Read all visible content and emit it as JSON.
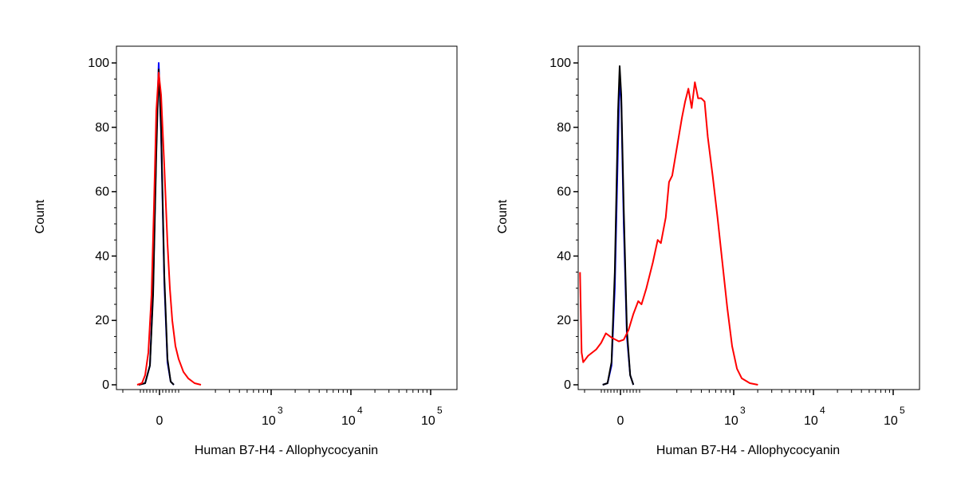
{
  "chart_data": [
    {
      "type": "line",
      "xlabel": "Human B7-H4 - Allophycocyanin",
      "ylabel": "Count",
      "ylim": [
        0,
        100
      ],
      "x_scale": "biexponential",
      "y_ticks": [
        "0",
        "20",
        "40",
        "60",
        "80",
        "100"
      ],
      "x_ticks": [
        {
          "base": "0",
          "exp": ""
        },
        {
          "base": "10",
          "exp": "3"
        },
        {
          "base": "10",
          "exp": "4"
        },
        {
          "base": "10",
          "exp": "5"
        }
      ],
      "grid": false,
      "series": [
        {
          "color": "#0000ff",
          "points": [
            [
              -1.3,
              0
            ],
            [
              -0.9,
              0.5
            ],
            [
              -0.6,
              6
            ],
            [
              -0.4,
              30
            ],
            [
              -0.2,
              75
            ],
            [
              -0.05,
              100
            ],
            [
              0.1,
              78
            ],
            [
              0.3,
              32
            ],
            [
              0.5,
              7
            ],
            [
              0.7,
              1
            ],
            [
              0.9,
              0
            ]
          ]
        },
        {
          "color": "#000000",
          "points": [
            [
              -1.3,
              0
            ],
            [
              -0.9,
              0.5
            ],
            [
              -0.6,
              6
            ],
            [
              -0.4,
              28
            ],
            [
              -0.2,
              72
            ],
            [
              -0.05,
              98
            ],
            [
              0.1,
              80
            ],
            [
              0.3,
              34
            ],
            [
              0.5,
              8
            ],
            [
              0.7,
              1
            ],
            [
              0.9,
              0
            ]
          ]
        },
        {
          "color": "#ff0000",
          "points": [
            [
              -1.4,
              0
            ],
            [
              -1.1,
              0.5
            ],
            [
              -0.9,
              3
            ],
            [
              -0.7,
              10
            ],
            [
              -0.5,
              28
            ],
            [
              -0.35,
              55
            ],
            [
              -0.2,
              85
            ],
            [
              -0.05,
              97
            ],
            [
              0.1,
              90
            ],
            [
              0.3,
              68
            ],
            [
              0.5,
              44
            ],
            [
              0.65,
              30
            ],
            [
              0.8,
              20
            ],
            [
              1.0,
              12
            ],
            [
              1.2,
              8
            ],
            [
              1.5,
              4
            ],
            [
              1.8,
              2
            ],
            [
              2.2,
              0.5
            ],
            [
              2.6,
              0
            ]
          ]
        }
      ]
    },
    {
      "type": "line",
      "xlabel": "Human B7-H4 - Allophycocyanin",
      "ylabel": "Count",
      "ylim": [
        0,
        100
      ],
      "x_scale": "biexponential",
      "y_ticks": [
        "0",
        "20",
        "40",
        "60",
        "80",
        "100"
      ],
      "x_ticks": [
        {
          "base": "0",
          "exp": ""
        },
        {
          "base": "10",
          "exp": "3"
        },
        {
          "base": "10",
          "exp": "4"
        },
        {
          "base": "10",
          "exp": "5"
        }
      ],
      "grid": false,
      "series": [
        {
          "color": "#0000ff",
          "points": [
            [
              -1.1,
              0
            ],
            [
              -0.8,
              0.5
            ],
            [
              -0.55,
              6
            ],
            [
              -0.35,
              30
            ],
            [
              -0.15,
              75
            ],
            [
              -0.05,
              96
            ],
            [
              0.05,
              88
            ],
            [
              0.2,
              50
            ],
            [
              0.4,
              15
            ],
            [
              0.6,
              3
            ],
            [
              0.8,
              0
            ]
          ]
        },
        {
          "color": "#000000",
          "points": [
            [
              -1.1,
              0
            ],
            [
              -0.8,
              0.5
            ],
            [
              -0.55,
              7
            ],
            [
              -0.35,
              35
            ],
            [
              -0.15,
              85
            ],
            [
              -0.05,
              99
            ],
            [
              0.05,
              90
            ],
            [
              0.2,
              55
            ],
            [
              0.4,
              17
            ],
            [
              0.6,
              3
            ],
            [
              0.8,
              0
            ]
          ]
        },
        {
          "color": "#ff0000",
          "points": [
            [
              -2.5,
              35
            ],
            [
              -2.4,
              10
            ],
            [
              -2.3,
              7
            ],
            [
              -2.0,
              9
            ],
            [
              -1.5,
              11
            ],
            [
              -1.2,
              13
            ],
            [
              -0.9,
              16
            ],
            [
              -0.5,
              14.5
            ],
            [
              -0.1,
              13.5
            ],
            [
              0.2,
              14
            ],
            [
              0.5,
              17
            ],
            [
              0.8,
              22
            ],
            [
              1.1,
              26
            ],
            [
              1.3,
              25
            ],
            [
              1.6,
              30
            ],
            [
              2.0,
              38
            ],
            [
              2.3,
              45
            ],
            [
              2.5,
              44
            ],
            [
              2.8,
              52
            ],
            [
              3.0,
              63
            ],
            [
              3.2,
              65
            ],
            [
              3.5,
              74
            ],
            [
              3.8,
              83
            ],
            [
              4.0,
              88
            ],
            [
              4.2,
              92
            ],
            [
              4.4,
              86
            ],
            [
              4.6,
              94
            ],
            [
              4.8,
              89
            ],
            [
              5.0,
              89
            ],
            [
              5.2,
              88
            ],
            [
              5.4,
              77
            ],
            [
              5.7,
              65
            ],
            [
              6.0,
              52
            ],
            [
              6.3,
              38
            ],
            [
              6.6,
              24
            ],
            [
              6.9,
              12
            ],
            [
              7.2,
              5
            ],
            [
              7.5,
              2
            ],
            [
              8.0,
              0.5
            ],
            [
              8.5,
              0
            ]
          ]
        }
      ]
    }
  ]
}
